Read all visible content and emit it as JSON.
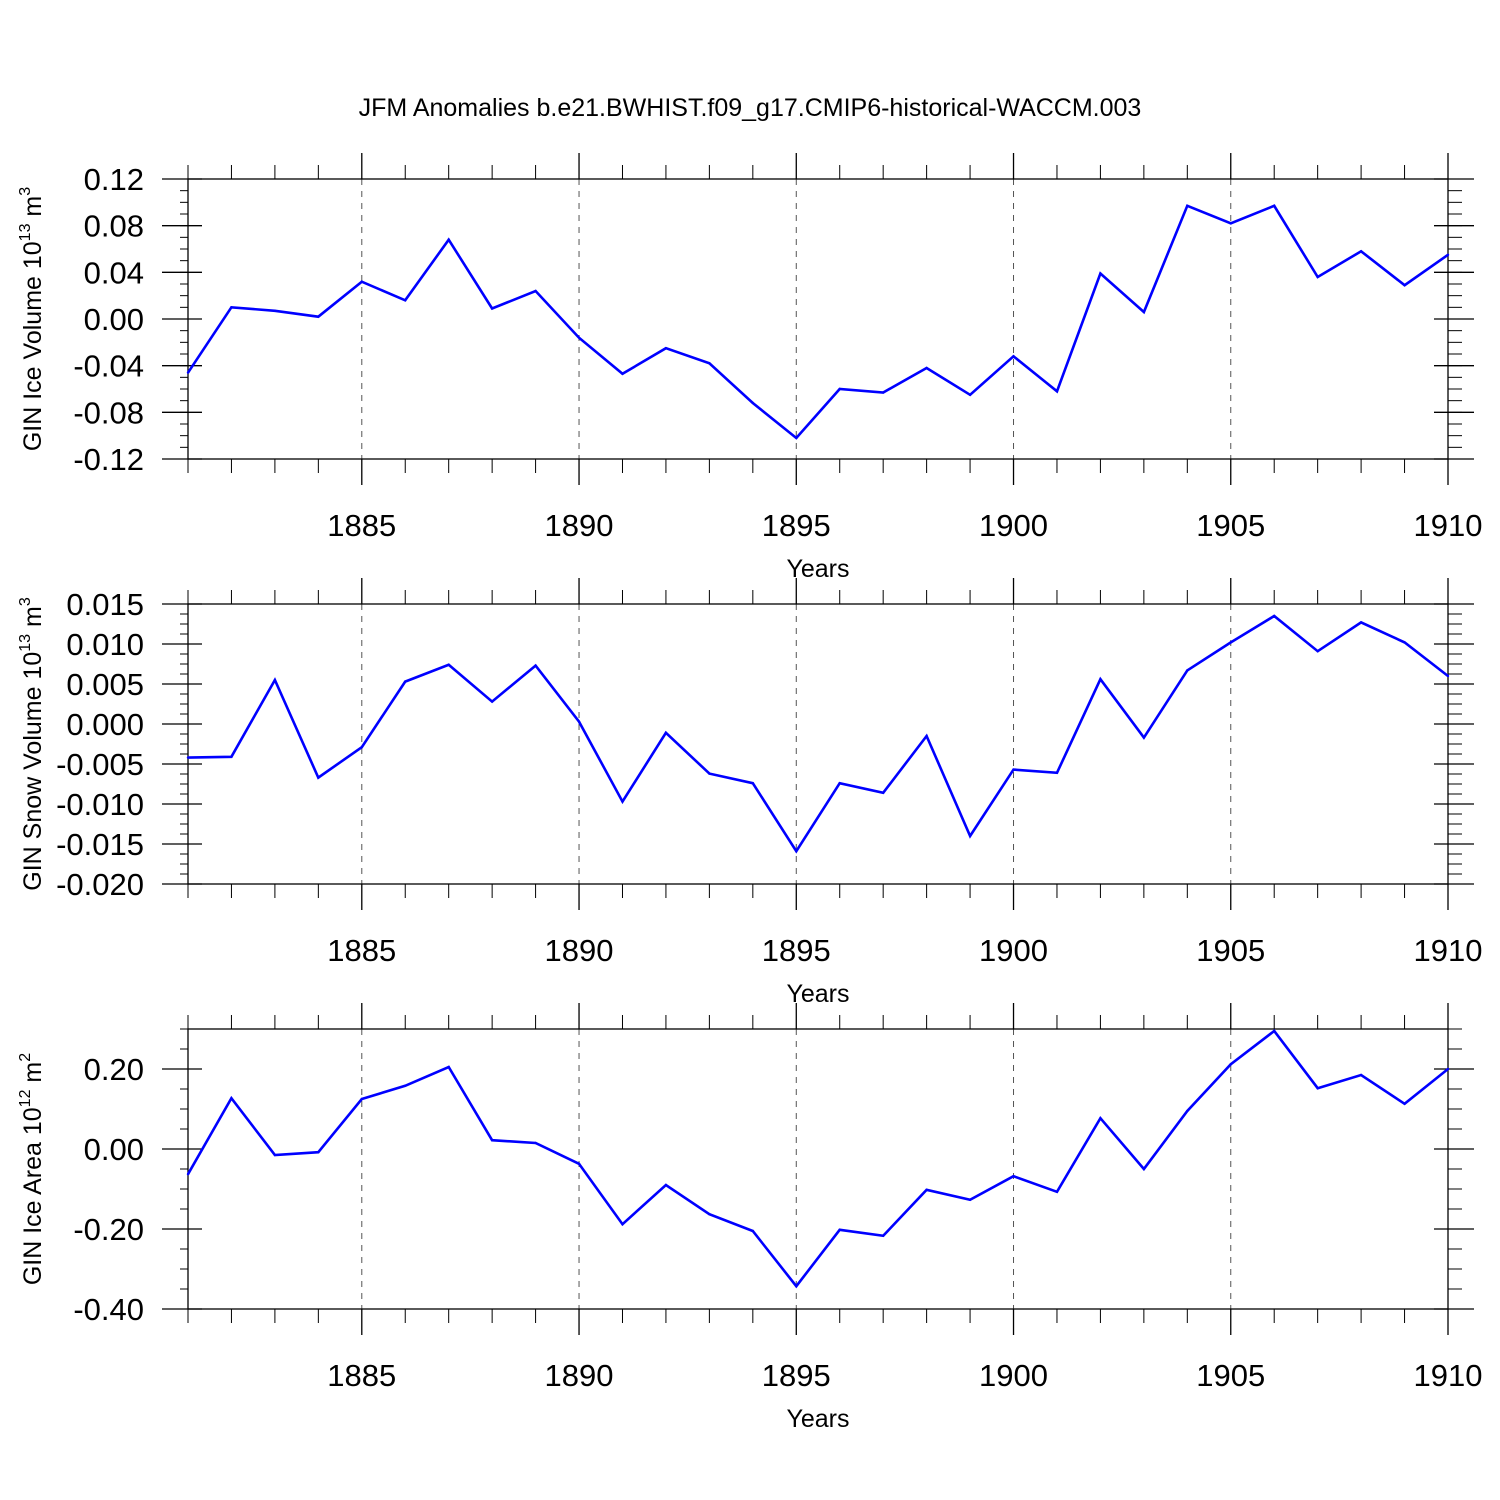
{
  "figure_title": "JFM Anomalies b.e21.BWHIST.f09_g17.CMIP6-historical-WACCM.003",
  "series_color": "#0000ff",
  "chart_data": [
    {
      "type": "line",
      "name": "ice-volume",
      "ylabel": "GIN Ice Volume 10",
      "ylabel_exp": "13",
      "ylabel_unit": " m",
      "ylabel_unit_exp": "3",
      "xlabel": "Years",
      "xlim": [
        1881,
        1910
      ],
      "ylim": [
        -0.12,
        0.12
      ],
      "yticks": [
        -0.12,
        -0.08,
        -0.04,
        0.0,
        0.04,
        0.08,
        0.12
      ],
      "ytick_labels": [
        "-0.12",
        "-0.08",
        "-0.04",
        "0.00",
        "0.04",
        "0.08",
        "0.12"
      ],
      "xticks": [
        1885,
        1890,
        1895,
        1900,
        1905,
        1910
      ],
      "xtick_labels": [
        "1885",
        "1890",
        "1895",
        "1900",
        "1905",
        "1910"
      ],
      "x": [
        1881,
        1882,
        1883,
        1884,
        1885,
        1886,
        1887,
        1888,
        1889,
        1890,
        1891,
        1892,
        1893,
        1894,
        1895,
        1896,
        1897,
        1898,
        1899,
        1900,
        1901,
        1902,
        1903,
        1904,
        1905,
        1906,
        1907,
        1908,
        1909,
        1910
      ],
      "values": [
        -0.046,
        0.01,
        0.007,
        0.002,
        0.032,
        0.016,
        0.068,
        0.009,
        0.024,
        -0.016,
        -0.047,
        -0.025,
        -0.038,
        -0.072,
        -0.102,
        -0.06,
        -0.063,
        -0.042,
        -0.065,
        -0.032,
        -0.062,
        0.039,
        0.006,
        0.097,
        0.082,
        0.097,
        0.036,
        0.058,
        0.029,
        0.055
      ]
    },
    {
      "type": "line",
      "name": "snow-volume",
      "ylabel": "GIN Snow Volume 10",
      "ylabel_exp": "13",
      "ylabel_unit": " m",
      "ylabel_unit_exp": "3",
      "xlabel": "Years",
      "xlim": [
        1881,
        1910
      ],
      "ylim": [
        -0.02,
        0.015
      ],
      "yticks": [
        -0.02,
        -0.015,
        -0.01,
        -0.005,
        0.0,
        0.005,
        0.01,
        0.015
      ],
      "ytick_labels": [
        "-0.020",
        "-0.015",
        "-0.010",
        "-0.005",
        "0.000",
        "0.005",
        "0.010",
        "0.015"
      ],
      "xticks": [
        1885,
        1890,
        1895,
        1900,
        1905,
        1910
      ],
      "xtick_labels": [
        "1885",
        "1890",
        "1895",
        "1900",
        "1905",
        "1910"
      ],
      "x": [
        1881,
        1882,
        1883,
        1884,
        1885,
        1886,
        1887,
        1888,
        1889,
        1890,
        1891,
        1892,
        1893,
        1894,
        1895,
        1896,
        1897,
        1898,
        1899,
        1900,
        1901,
        1902,
        1903,
        1904,
        1905,
        1906,
        1907,
        1908,
        1909,
        1910
      ],
      "values": [
        -0.0042,
        -0.0041,
        0.0055,
        -0.0067,
        -0.0029,
        0.0053,
        0.0074,
        0.0028,
        0.0073,
        0.0003,
        -0.0097,
        -0.0011,
        -0.0062,
        -0.0074,
        -0.0159,
        -0.0074,
        -0.0086,
        -0.0015,
        -0.014,
        -0.0057,
        -0.0061,
        0.0056,
        -0.0017,
        0.0067,
        0.0102,
        0.0135,
        0.0091,
        0.0127,
        0.0102,
        0.006
      ]
    },
    {
      "type": "line",
      "name": "ice-area",
      "ylabel": "GIN Ice Area 10",
      "ylabel_exp": "12",
      "ylabel_unit": " m",
      "ylabel_unit_exp": "2",
      "xlabel": "Years",
      "xlim": [
        1881,
        1910
      ],
      "ylim": [
        -0.4,
        0.3
      ],
      "yticks": [
        -0.4,
        -0.2,
        0.0,
        0.2
      ],
      "ytick_labels": [
        "-0.40",
        "-0.20",
        "0.00",
        "0.20"
      ],
      "yminor_step": 0.05,
      "xticks": [
        1885,
        1890,
        1895,
        1900,
        1905,
        1910
      ],
      "xtick_labels": [
        "1885",
        "1890",
        "1895",
        "1900",
        "1905",
        "1910"
      ],
      "x": [
        1881,
        1882,
        1883,
        1884,
        1885,
        1886,
        1887,
        1888,
        1889,
        1890,
        1891,
        1892,
        1893,
        1894,
        1895,
        1896,
        1897,
        1898,
        1899,
        1900,
        1901,
        1902,
        1903,
        1904,
        1905,
        1906,
        1907,
        1908,
        1909,
        1910
      ],
      "values": [
        -0.063,
        0.127,
        -0.015,
        -0.008,
        0.125,
        0.158,
        0.205,
        0.022,
        0.015,
        -0.037,
        -0.188,
        -0.09,
        -0.163,
        -0.205,
        -0.343,
        -0.202,
        -0.217,
        -0.102,
        -0.127,
        -0.068,
        -0.107,
        0.077,
        -0.05,
        0.095,
        0.212,
        0.295,
        0.152,
        0.185,
        0.113,
        0.2
      ]
    }
  ]
}
